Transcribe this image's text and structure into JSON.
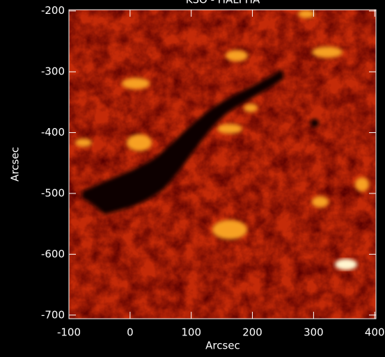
{
  "chart_data": {
    "type": "image",
    "title": "KSO - HALPHA",
    "xlabel": "Arcsec",
    "ylabel": "Arcsec",
    "xlim": [
      -100,
      402
    ],
    "ylim": [
      -706,
      -198
    ],
    "xticks": [
      -100,
      0,
      100,
      200,
      300,
      400
    ],
    "yticks": [
      -700,
      -600,
      -500,
      -400,
      -300,
      -200
    ]
  }
}
